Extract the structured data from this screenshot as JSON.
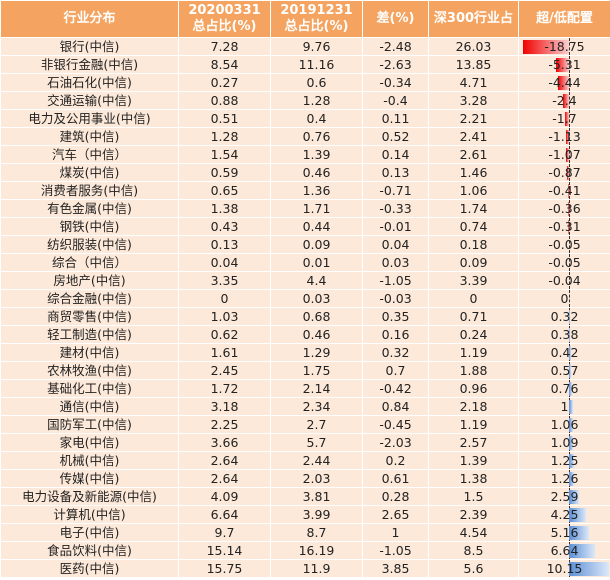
{
  "table": {
    "header": [
      "行业分布",
      "20200331\n总占比(%)",
      "20191231\n总占比(%)",
      "差(%)",
      "深300行业占",
      "超/低配置"
    ],
    "rows": [
      [
        "银行(中信)",
        7.28,
        9.76,
        -2.48,
        26.03,
        -18.75
      ],
      [
        "非银行金融(中信)",
        8.54,
        11.16,
        -2.63,
        13.85,
        -5.31
      ],
      [
        "石油石化(中信)",
        0.27,
        0.6,
        -0.34,
        4.71,
        -4.44
      ],
      [
        "交通运输(中信)",
        0.88,
        1.28,
        -0.4,
        3.28,
        -2.4
      ],
      [
        "电力及公用事业(中信)",
        0.51,
        0.4,
        0.11,
        2.21,
        -1.7
      ],
      [
        "建筑(中信)",
        1.28,
        0.76,
        0.52,
        2.41,
        -1.13
      ],
      [
        "汽车（中信）",
        1.54,
        1.39,
        0.14,
        2.61,
        -1.07
      ],
      [
        "煤炭(中信)",
        0.59,
        0.46,
        0.13,
        1.46,
        -0.87
      ],
      [
        "消费者服务(中信)",
        0.65,
        1.36,
        -0.71,
        1.06,
        -0.41
      ],
      [
        "有色金属(中信)",
        1.38,
        1.71,
        -0.33,
        1.74,
        -0.36
      ],
      [
        "钢铁(中信)",
        0.43,
        0.44,
        -0.01,
        0.74,
        -0.31
      ],
      [
        "纺织服装(中信)",
        0.13,
        0.09,
        0.04,
        0.18,
        -0.05
      ],
      [
        "综合（中信）",
        0.04,
        0.01,
        0.03,
        0.09,
        -0.05
      ],
      [
        "房地产(中信)",
        3.35,
        4.4,
        -1.05,
        3.39,
        -0.04
      ],
      [
        "综合金融(中信)",
        0,
        0.03,
        -0.03,
        0,
        0
      ],
      [
        "商贸零售(中信)",
        1.03,
        0.68,
        0.35,
        0.71,
        0.32
      ],
      [
        "轻工制造(中信)",
        0.62,
        0.46,
        0.16,
        0.24,
        0.38
      ],
      [
        "建材(中信)",
        1.61,
        1.29,
        0.32,
        1.19,
        0.42
      ],
      [
        "农林牧渔(中信)",
        2.45,
        1.75,
        0.7,
        1.88,
        0.57
      ],
      [
        "基础化工(中信)",
        1.72,
        2.14,
        -0.42,
        0.96,
        0.76
      ],
      [
        "通信(中信)",
        3.18,
        2.34,
        0.84,
        2.18,
        1
      ],
      [
        "国防军工(中信)",
        2.25,
        2.7,
        -0.45,
        1.19,
        1.06
      ],
      [
        "家电(中信)",
        3.66,
        5.7,
        -2.03,
        2.57,
        1.09
      ],
      [
        "机械(中信)",
        2.64,
        2.44,
        0.2,
        1.39,
        1.25
      ],
      [
        "传媒(中信)",
        2.64,
        2.03,
        0.61,
        1.38,
        1.26
      ],
      [
        "电力设备及新能源(中信)",
        4.09,
        3.81,
        0.28,
        1.5,
        2.59
      ],
      [
        "计算机(中信)",
        6.64,
        3.99,
        2.65,
        2.39,
        4.25
      ],
      [
        "电子(中信)",
        9.7,
        8.7,
        1,
        4.54,
        5.16
      ],
      [
        "食品饮料(中信)",
        15.14,
        16.19,
        -1.05,
        8.5,
        6.64
      ],
      [
        "医药(中信)",
        15.75,
        11.9,
        3.85,
        5.6,
        10.15
      ]
    ]
  }
}
